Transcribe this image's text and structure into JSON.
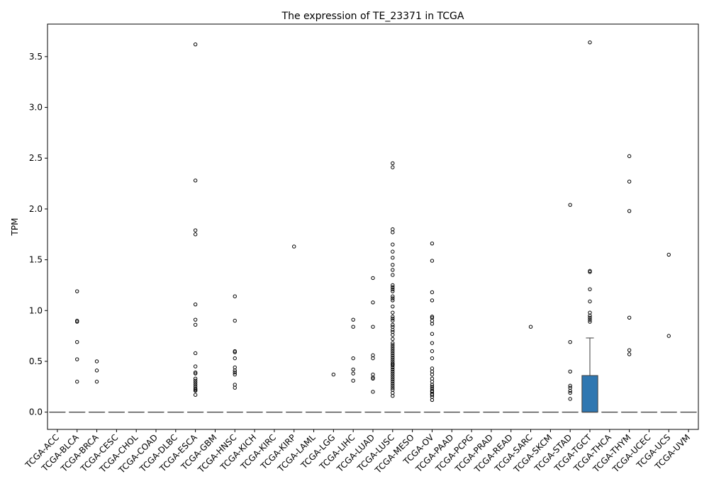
{
  "chart_data": {
    "type": "box",
    "title": "The expression of TE_23371 in TCGA",
    "xlabel": "",
    "ylabel": "TPM",
    "ylim": [
      -0.17,
      3.82
    ],
    "yticks": [
      0.0,
      0.5,
      1.0,
      1.5,
      2.0,
      2.5,
      3.0,
      3.5
    ],
    "ytick_labels": [
      "0.0",
      "0.5",
      "1.0",
      "1.5",
      "2.0",
      "2.5",
      "3.0",
      "3.5"
    ],
    "grid": false,
    "box_color": "#2f77b1",
    "categories": [
      "TCGA-ACC",
      "TCGA-BLCA",
      "TCGA-BRCA",
      "TCGA-CESC",
      "TCGA-CHOL",
      "TCGA-COAD",
      "TCGA-DLBC",
      "TCGA-ESCA",
      "TCGA-GBM",
      "TCGA-HNSC",
      "TCGA-KICH",
      "TCGA-KIRC",
      "TCGA-KIRP",
      "TCGA-LAML",
      "TCGA-LGG",
      "TCGA-LIHC",
      "TCGA-LUAD",
      "TCGA-LUSC",
      "TCGA-MESO",
      "TCGA-OV",
      "TCGA-PAAD",
      "TCGA-PCPG",
      "TCGA-PRAD",
      "TCGA-READ",
      "TCGA-SARC",
      "TCGA-SKCM",
      "TCGA-STAD",
      "TCGA-TGCT",
      "TCGA-THCA",
      "TCGA-THYM",
      "TCGA-UCEC",
      "TCGA-UCS",
      "TCGA-UVM"
    ],
    "boxes": [
      {
        "q1": 0,
        "median": 0,
        "q3": 0,
        "whislo": 0,
        "whishi": 0,
        "fliers": []
      },
      {
        "q1": 0,
        "median": 0,
        "q3": 0,
        "whislo": 0,
        "whishi": 0,
        "fliers": [
          1.19,
          0.9,
          0.89,
          0.69,
          0.52,
          0.3
        ]
      },
      {
        "q1": 0,
        "median": 0,
        "q3": 0,
        "whislo": 0,
        "whishi": 0,
        "fliers": [
          0.5,
          0.41,
          0.3
        ]
      },
      {
        "q1": 0,
        "median": 0,
        "q3": 0,
        "whislo": 0,
        "whishi": 0,
        "fliers": []
      },
      {
        "q1": 0,
        "median": 0,
        "q3": 0,
        "whislo": 0,
        "whishi": 0,
        "fliers": []
      },
      {
        "q1": 0,
        "median": 0,
        "q3": 0,
        "whislo": 0,
        "whishi": 0,
        "fliers": []
      },
      {
        "q1": 0,
        "median": 0,
        "q3": 0,
        "whislo": 0,
        "whishi": 0,
        "fliers": []
      },
      {
        "q1": 0,
        "median": 0,
        "q3": 0,
        "whislo": 0,
        "whishi": 0,
        "fliers": [
          3.62,
          2.28,
          1.79,
          1.75,
          1.06,
          0.91,
          0.86,
          0.58,
          0.45,
          0.39,
          0.38,
          0.33,
          0.31,
          0.29,
          0.27,
          0.25,
          0.23,
          0.22,
          0.21,
          0.17
        ]
      },
      {
        "q1": 0,
        "median": 0,
        "q3": 0,
        "whislo": 0,
        "whishi": 0,
        "fliers": []
      },
      {
        "q1": 0,
        "median": 0,
        "q3": 0,
        "whislo": 0,
        "whishi": 0,
        "fliers": [
          1.14,
          0.9,
          0.6,
          0.59,
          0.53,
          0.44,
          0.41,
          0.39,
          0.37,
          0.27,
          0.24
        ]
      },
      {
        "q1": 0,
        "median": 0,
        "q3": 0,
        "whislo": 0,
        "whishi": 0,
        "fliers": []
      },
      {
        "q1": 0,
        "median": 0,
        "q3": 0,
        "whislo": 0,
        "whishi": 0,
        "fliers": []
      },
      {
        "q1": 0,
        "median": 0,
        "q3": 0,
        "whislo": 0,
        "whishi": 0,
        "fliers": [
          1.63
        ]
      },
      {
        "q1": 0,
        "median": 0,
        "q3": 0,
        "whislo": 0,
        "whishi": 0,
        "fliers": []
      },
      {
        "q1": 0,
        "median": 0,
        "q3": 0,
        "whislo": 0,
        "whishi": 0,
        "fliers": [
          0.37
        ]
      },
      {
        "q1": 0,
        "median": 0,
        "q3": 0,
        "whislo": 0,
        "whishi": 0,
        "fliers": [
          0.91,
          0.84,
          0.53,
          0.42,
          0.38,
          0.31
        ]
      },
      {
        "q1": 0,
        "median": 0,
        "q3": 0,
        "whislo": 0,
        "whishi": 0,
        "fliers": [
          1.32,
          1.08,
          0.84,
          0.56,
          0.53,
          0.37,
          0.34,
          0.33,
          0.2
        ]
      },
      {
        "q1": 0,
        "median": 0,
        "q3": 0,
        "whislo": 0,
        "whishi": 0,
        "fliers": [
          2.45,
          2.41,
          1.8,
          1.77,
          1.65,
          1.58,
          1.52,
          1.45,
          1.4,
          1.35,
          1.25,
          1.23,
          1.21,
          1.19,
          1.14,
          1.12,
          1.1,
          1.04,
          0.98,
          0.94,
          0.92,
          0.9,
          0.86,
          0.84,
          0.81,
          0.79,
          0.76,
          0.72,
          0.68,
          0.66,
          0.64,
          0.62,
          0.6,
          0.58,
          0.56,
          0.54,
          0.52,
          0.5,
          0.48,
          0.47,
          0.46,
          0.44,
          0.42,
          0.4,
          0.38,
          0.36,
          0.34,
          0.32,
          0.3,
          0.28,
          0.26,
          0.24,
          0.22,
          0.19,
          0.16
        ]
      },
      {
        "q1": 0,
        "median": 0,
        "q3": 0,
        "whislo": 0,
        "whishi": 0,
        "fliers": []
      },
      {
        "q1": 0,
        "median": 0,
        "q3": 0,
        "whislo": 0,
        "whishi": 0,
        "fliers": [
          1.66,
          1.49,
          1.18,
          1.1,
          0.94,
          0.93,
          0.9,
          0.87,
          0.77,
          0.68,
          0.6,
          0.53,
          0.43,
          0.4,
          0.37,
          0.33,
          0.3,
          0.27,
          0.25,
          0.23,
          0.21,
          0.2,
          0.18,
          0.17,
          0.15,
          0.12
        ]
      },
      {
        "q1": 0,
        "median": 0,
        "q3": 0,
        "whislo": 0,
        "whishi": 0,
        "fliers": []
      },
      {
        "q1": 0,
        "median": 0,
        "q3": 0,
        "whislo": 0,
        "whishi": 0,
        "fliers": []
      },
      {
        "q1": 0,
        "median": 0,
        "q3": 0,
        "whislo": 0,
        "whishi": 0,
        "fliers": []
      },
      {
        "q1": 0,
        "median": 0,
        "q3": 0,
        "whislo": 0,
        "whishi": 0,
        "fliers": []
      },
      {
        "q1": 0,
        "median": 0,
        "q3": 0,
        "whislo": 0,
        "whishi": 0,
        "fliers": [
          0.84
        ]
      },
      {
        "q1": 0,
        "median": 0,
        "q3": 0,
        "whislo": 0,
        "whishi": 0,
        "fliers": []
      },
      {
        "q1": 0,
        "median": 0,
        "q3": 0,
        "whislo": 0,
        "whishi": 0,
        "fliers": [
          2.04,
          0.69,
          0.4,
          0.26,
          0.24,
          0.21,
          0.19,
          0.13
        ]
      },
      {
        "q1": 0,
        "median": 0,
        "q3": 0.36,
        "whislo": 0,
        "whishi": 0.73,
        "fliers": [
          3.64,
          1.39,
          1.38,
          1.21,
          1.09,
          0.98,
          0.95,
          0.93,
          0.91,
          0.89
        ]
      },
      {
        "q1": 0,
        "median": 0,
        "q3": 0,
        "whislo": 0,
        "whishi": 0,
        "fliers": []
      },
      {
        "q1": 0,
        "median": 0,
        "q3": 0,
        "whislo": 0,
        "whishi": 0,
        "fliers": [
          2.52,
          2.27,
          1.98,
          0.93,
          0.61,
          0.57
        ]
      },
      {
        "q1": 0,
        "median": 0,
        "q3": 0,
        "whislo": 0,
        "whishi": 0,
        "fliers": []
      },
      {
        "q1": 0,
        "median": 0,
        "q3": 0,
        "whislo": 0,
        "whishi": 0,
        "fliers": [
          1.55,
          0.75
        ]
      },
      {
        "q1": 0,
        "median": 0,
        "q3": 0,
        "whislo": 0,
        "whishi": 0,
        "fliers": []
      }
    ]
  }
}
